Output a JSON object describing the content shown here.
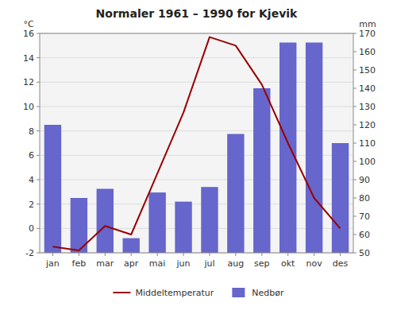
{
  "chart_data": {
    "type": "bar",
    "title": "Normaler 1961 – 1990 for Kjevik",
    "categories": [
      "jan",
      "feb",
      "mar",
      "apr",
      "mai",
      "jun",
      "jul",
      "aug",
      "sep",
      "okt",
      "nov",
      "des"
    ],
    "series": [
      {
        "name": "Middeltemperatur",
        "type": "line",
        "color": "#990000",
        "values": [
          -1.5,
          -1.8,
          0.2,
          -0.5,
          4.5,
          9.5,
          15.7,
          15.0,
          11.8,
          7.0,
          2.5,
          0.0
        ]
      },
      {
        "name": "Nedbør",
        "type": "bar",
        "axis": "y2",
        "color": "#6666cc",
        "values": [
          120,
          80,
          85,
          58,
          83,
          78,
          86,
          115,
          140,
          165,
          165,
          110
        ]
      }
    ],
    "ylabel": "°C",
    "y2label": "mm",
    "ylim": [
      -2,
      16
    ],
    "yticks": [
      -2,
      0,
      2,
      4,
      6,
      8,
      10,
      12,
      14,
      16
    ],
    "y2lim": [
      50,
      170
    ],
    "y2ticks": [
      50,
      60,
      70,
      80,
      90,
      100,
      110,
      120,
      130,
      140,
      150,
      160,
      170
    ],
    "grid": true,
    "legend": "bottom"
  }
}
